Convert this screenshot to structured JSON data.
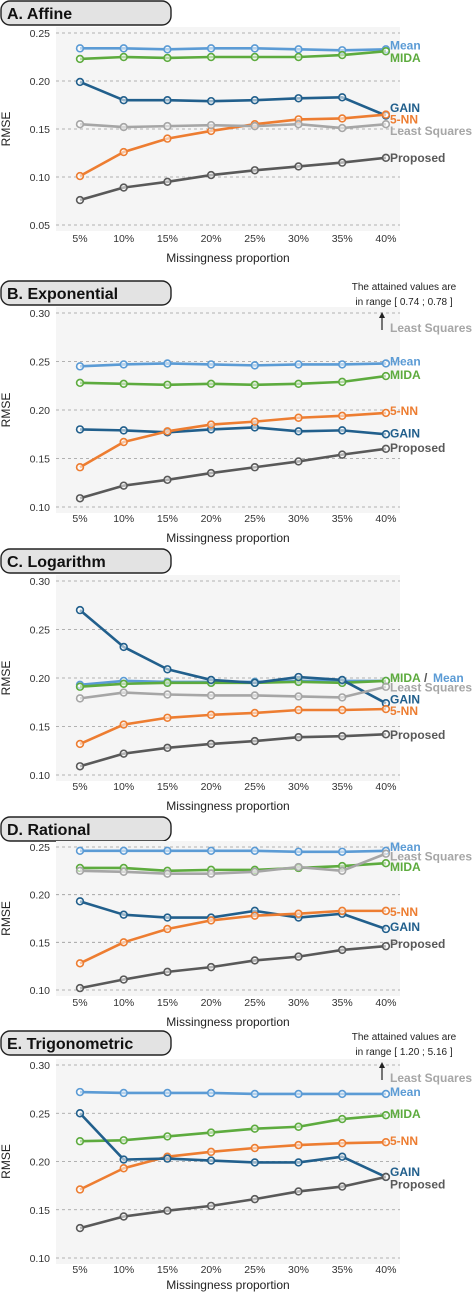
{
  "chart_data": [
    {
      "type": "line",
      "title": "A. Affine",
      "xlabel": "Missingness proportion",
      "ylabel": "RMSE",
      "ylim": [
        0.05,
        0.25
      ],
      "yticks": [
        "0.05",
        "0.10",
        "0.15",
        "0.20",
        "0.25"
      ],
      "categories": [
        "5%",
        "10%",
        "15%",
        "20%",
        "25%",
        "30%",
        "35%",
        "40%"
      ],
      "grid": true,
      "series": [
        {
          "name": "Mean",
          "color": "#5b9bd5",
          "values": [
            0.234,
            0.234,
            0.233,
            0.234,
            0.234,
            0.233,
            0.232,
            0.233
          ]
        },
        {
          "name": "MIDA",
          "color": "#5dab3e",
          "values": [
            0.223,
            0.225,
            0.224,
            0.225,
            0.225,
            0.225,
            0.227,
            0.231
          ]
        },
        {
          "name": "GAIN",
          "color": "#215f8c",
          "values": [
            0.199,
            0.18,
            0.18,
            0.179,
            0.18,
            0.182,
            0.183,
            0.164
          ]
        },
        {
          "name": "5-NN",
          "color": "#ed7d31",
          "values": [
            0.101,
            0.126,
            0.14,
            0.148,
            0.155,
            0.16,
            0.161,
            0.165
          ]
        },
        {
          "name": "Least Squares",
          "color": "#a6a6a6",
          "values": [
            0.155,
            0.152,
            0.153,
            0.154,
            0.153,
            0.155,
            0.151,
            0.155
          ]
        },
        {
          "name": "Proposed",
          "color": "#595959",
          "values": [
            0.076,
            0.089,
            0.095,
            0.102,
            0.107,
            0.111,
            0.115,
            0.12
          ]
        }
      ],
      "labels": [
        {
          "text": "Mean",
          "color": "#5b9bd5",
          "y": 0.237
        },
        {
          "text": "MIDA",
          "color": "#5dab3e",
          "y": 0.224
        },
        {
          "text": "GAIN",
          "color": "#215f8c",
          "y": 0.172
        },
        {
          "text": "5-NN",
          "color": "#ed7d31",
          "y": 0.16
        },
        {
          "text": "Least Squares",
          "color": "#a6a6a6",
          "y": 0.148
        },
        {
          "text": "Proposed",
          "color": "#595959",
          "y": 0.12
        }
      ]
    },
    {
      "type": "line",
      "title": "B. Exponential",
      "xlabel": "Missingness proportion",
      "ylabel": "RMSE",
      "ylim": [
        0.1,
        0.3
      ],
      "yticks": [
        "0.10",
        "0.15",
        "0.20",
        "0.25",
        "0.30"
      ],
      "categories": [
        "5%",
        "10%",
        "15%",
        "20%",
        "25%",
        "30%",
        "35%",
        "40%"
      ],
      "grid": true,
      "series": [
        {
          "name": "Mean",
          "color": "#5b9bd5",
          "values": [
            0.245,
            0.247,
            0.248,
            0.247,
            0.246,
            0.247,
            0.247,
            0.248
          ]
        },
        {
          "name": "MIDA",
          "color": "#5dab3e",
          "values": [
            0.228,
            0.227,
            0.226,
            0.227,
            0.226,
            0.227,
            0.229,
            0.235
          ]
        },
        {
          "name": "GAIN",
          "color": "#215f8c",
          "values": [
            0.18,
            0.179,
            0.177,
            0.18,
            0.182,
            0.178,
            0.179,
            0.175
          ]
        },
        {
          "name": "5-NN",
          "color": "#ed7d31",
          "values": [
            0.141,
            0.167,
            0.178,
            0.185,
            0.188,
            0.192,
            0.194,
            0.197
          ]
        },
        {
          "name": "Proposed",
          "color": "#595959",
          "values": [
            0.109,
            0.122,
            0.128,
            0.135,
            0.141,
            0.147,
            0.154,
            0.16
          ]
        }
      ],
      "labels": [
        {
          "text": "Mean",
          "color": "#5b9bd5",
          "y": 0.25
        },
        {
          "text": "MIDA",
          "color": "#5dab3e",
          "y": 0.236
        },
        {
          "text": "5-NN",
          "color": "#ed7d31",
          "y": 0.199
        },
        {
          "text": "GAIN",
          "color": "#215f8c",
          "y": 0.176
        },
        {
          "text": "Proposed",
          "color": "#595959",
          "y": 0.161
        }
      ],
      "annotation": {
        "line1": "The attained values are",
        "line2": "in range [ 0.74 ; 0.78 ]",
        "arrow_label": "Least Squares",
        "color": "#a6a6a6"
      }
    },
    {
      "type": "line",
      "title": "C. Logarithm",
      "xlabel": "Missingness proportion",
      "ylabel": "RMSE",
      "ylim": [
        0.1,
        0.3
      ],
      "yticks": [
        "0.10",
        "0.15",
        "0.20",
        "0.25",
        "0.30"
      ],
      "categories": [
        "5%",
        "10%",
        "15%",
        "20%",
        "25%",
        "30%",
        "35%",
        "40%"
      ],
      "grid": true,
      "series": [
        {
          "name": "Mean",
          "color": "#5b9bd5",
          "values": [
            0.193,
            0.197,
            0.196,
            0.196,
            0.196,
            0.197,
            0.197,
            0.197
          ]
        },
        {
          "name": "MIDA",
          "color": "#5dab3e",
          "values": [
            0.191,
            0.194,
            0.195,
            0.195,
            0.195,
            0.196,
            0.195,
            0.197
          ]
        },
        {
          "name": "GAIN",
          "color": "#215f8c",
          "values": [
            0.27,
            0.232,
            0.209,
            0.198,
            0.195,
            0.201,
            0.198,
            0.174
          ]
        },
        {
          "name": "5-NN",
          "color": "#ed7d31",
          "values": [
            0.132,
            0.152,
            0.159,
            0.162,
            0.164,
            0.167,
            0.167,
            0.168
          ]
        },
        {
          "name": "Least Squares",
          "color": "#a6a6a6",
          "values": [
            0.179,
            0.185,
            0.183,
            0.182,
            0.182,
            0.181,
            0.18,
            0.191
          ]
        },
        {
          "name": "Proposed",
          "color": "#595959",
          "values": [
            0.109,
            0.122,
            0.128,
            0.132,
            0.135,
            0.139,
            0.14,
            0.142
          ]
        }
      ],
      "labels": [
        {
          "text": "MIDA",
          "color": "#5dab3e",
          "y": 0.2
        },
        {
          "text": "Least Squares",
          "color": "#a6a6a6",
          "y": 0.19
        },
        {
          "text": "GAIN",
          "color": "#215f8c",
          "y": 0.178
        },
        {
          "text": "5-NN",
          "color": "#ed7d31",
          "y": 0.166
        },
        {
          "text": "Proposed",
          "color": "#595959",
          "y": 0.141
        }
      ],
      "separator": "/",
      "mean_label": "Mean"
    },
    {
      "type": "line",
      "title": "D. Rational",
      "xlabel": "Missingness proportion",
      "ylabel": "RMSE",
      "ylim": [
        0.1,
        0.25
      ],
      "yticks": [
        "0.10",
        "0.15",
        "0.20",
        "0.25"
      ],
      "categories": [
        "5%",
        "10%",
        "15%",
        "20%",
        "25%",
        "30%",
        "35%",
        "40%"
      ],
      "grid": true,
      "series": [
        {
          "name": "Mean",
          "color": "#5b9bd5",
          "values": [
            0.246,
            0.246,
            0.246,
            0.246,
            0.246,
            0.245,
            0.245,
            0.246
          ]
        },
        {
          "name": "MIDA",
          "color": "#5dab3e",
          "values": [
            0.228,
            0.228,
            0.225,
            0.226,
            0.226,
            0.228,
            0.23,
            0.233
          ]
        },
        {
          "name": "Least Squares",
          "color": "#a6a6a6",
          "values": [
            0.225,
            0.224,
            0.222,
            0.222,
            0.224,
            0.229,
            0.225,
            0.243
          ]
        },
        {
          "name": "GAIN",
          "color": "#215f8c",
          "values": [
            0.193,
            0.179,
            0.176,
            0.176,
            0.183,
            0.176,
            0.18,
            0.164
          ]
        },
        {
          "name": "5-NN",
          "color": "#ed7d31",
          "values": [
            0.128,
            0.15,
            0.164,
            0.173,
            0.178,
            0.18,
            0.183,
            0.183
          ]
        },
        {
          "name": "Proposed",
          "color": "#595959",
          "values": [
            0.102,
            0.111,
            0.119,
            0.124,
            0.131,
            0.135,
            0.142,
            0.146
          ]
        }
      ],
      "labels": [
        {
          "text": "Mean",
          "color": "#5b9bd5",
          "y": 0.25
        },
        {
          "text": "Least Squares",
          "color": "#a6a6a6",
          "y": 0.24
        },
        {
          "text": "MIDA",
          "color": "#5dab3e",
          "y": 0.229
        },
        {
          "text": "5-NN",
          "color": "#ed7d31",
          "y": 0.182
        },
        {
          "text": "GAIN",
          "color": "#215f8c",
          "y": 0.166
        },
        {
          "text": "Proposed",
          "color": "#595959",
          "y": 0.148
        }
      ]
    },
    {
      "type": "line",
      "title": "E. Trigonometric",
      "xlabel": "Missingness proportion",
      "ylabel": "RMSE",
      "ylim": [
        0.1,
        0.3
      ],
      "yticks": [
        "0.10",
        "0.15",
        "0.20",
        "0.25",
        "0.30"
      ],
      "categories": [
        "5%",
        "10%",
        "15%",
        "20%",
        "25%",
        "30%",
        "35%",
        "40%"
      ],
      "grid": true,
      "series": [
        {
          "name": "Mean",
          "color": "#5b9bd5",
          "values": [
            0.272,
            0.271,
            0.271,
            0.271,
            0.27,
            0.27,
            0.27,
            0.27
          ]
        },
        {
          "name": "MIDA",
          "color": "#5dab3e",
          "values": [
            0.221,
            0.222,
            0.226,
            0.23,
            0.234,
            0.236,
            0.244,
            0.248
          ]
        },
        {
          "name": "5-NN",
          "color": "#ed7d31",
          "values": [
            0.171,
            0.193,
            0.205,
            0.21,
            0.214,
            0.217,
            0.219,
            0.22
          ]
        },
        {
          "name": "GAIN",
          "color": "#215f8c",
          "values": [
            0.25,
            0.202,
            0.203,
            0.201,
            0.199,
            0.199,
            0.205,
            0.184
          ]
        },
        {
          "name": "Proposed",
          "color": "#595959",
          "values": [
            0.131,
            0.143,
            0.149,
            0.154,
            0.161,
            0.169,
            0.174,
            0.184
          ]
        }
      ],
      "labels": [
        {
          "text": "Mean",
          "color": "#5b9bd5",
          "y": 0.272
        },
        {
          "text": "MIDA",
          "color": "#5dab3e",
          "y": 0.249
        },
        {
          "text": "5-NN",
          "color": "#ed7d31",
          "y": 0.221
        },
        {
          "text": "GAIN",
          "color": "#215f8c",
          "y": 0.189
        },
        {
          "text": "Proposed",
          "color": "#595959",
          "y": 0.176
        }
      ],
      "annotation": {
        "line1": "The attained values are",
        "line2": "in range [ 1.20 ; 5.16 ]",
        "arrow_label": "Least Squares",
        "color": "#a6a6a6"
      }
    }
  ]
}
